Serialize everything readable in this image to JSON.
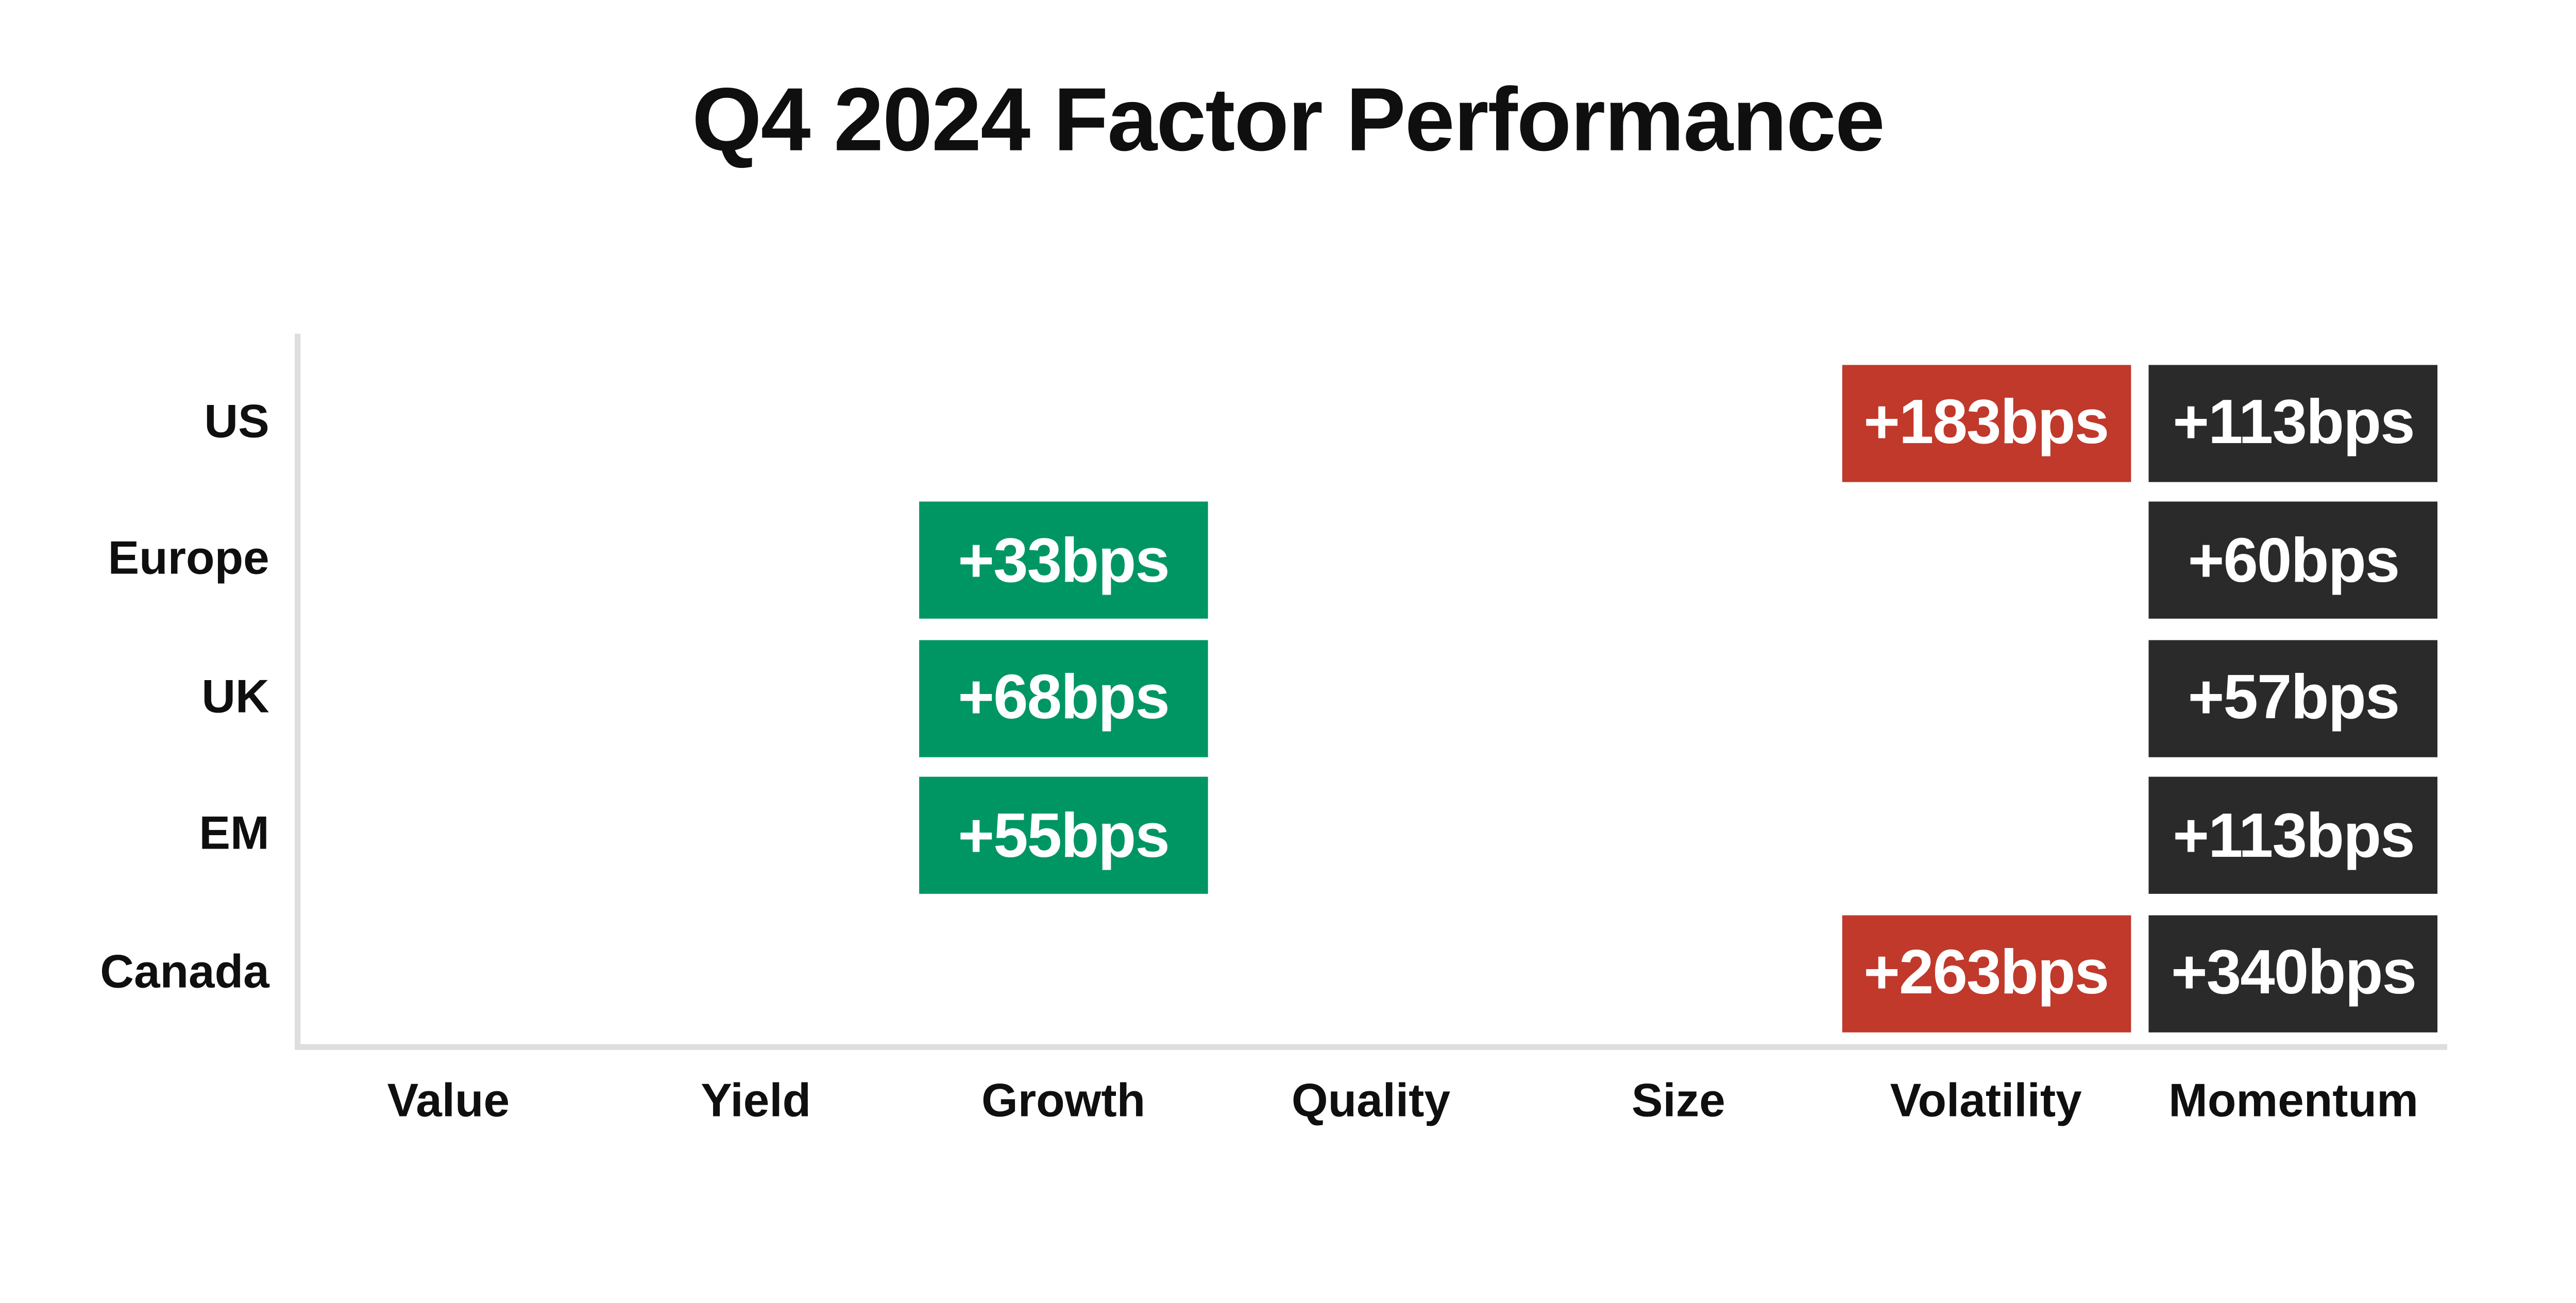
{
  "title": "Q4 2024 Factor Performance",
  "colors": {
    "background": "#FFFFFF",
    "title_text": "#0F0F0F",
    "axis_line": "#DEDEDE",
    "axis_label_text": "#0F0F0F",
    "cell_text": "#FFFFFF",
    "green": "#009664",
    "red": "#C0392B",
    "dark": "#2A2A2A"
  },
  "chart_data": {
    "type": "heatmap",
    "title": "Q4 2024 Factor Performance",
    "unit": "bps",
    "rows": [
      "US",
      "Europe",
      "UK",
      "EM",
      "Canada"
    ],
    "columns": [
      "Value",
      "Yield",
      "Growth",
      "Quality",
      "Size",
      "Volatility",
      "Momentum"
    ],
    "cells": [
      {
        "row": "US",
        "column": "Volatility",
        "label": "+183bps",
        "value": 183,
        "color": "red"
      },
      {
        "row": "US",
        "column": "Momentum",
        "label": "+113bps",
        "value": 113,
        "color": "dark"
      },
      {
        "row": "Europe",
        "column": "Growth",
        "label": "+33bps",
        "value": 33,
        "color": "green"
      },
      {
        "row": "Europe",
        "column": "Momentum",
        "label": "+60bps",
        "value": 60,
        "color": "dark"
      },
      {
        "row": "UK",
        "column": "Growth",
        "label": "+68bps",
        "value": 68,
        "color": "green"
      },
      {
        "row": "UK",
        "column": "Momentum",
        "label": "+57bps",
        "value": 57,
        "color": "dark"
      },
      {
        "row": "EM",
        "column": "Growth",
        "label": "+55bps",
        "value": 55,
        "color": "green"
      },
      {
        "row": "EM",
        "column": "Momentum",
        "label": "+113bps",
        "value": 113,
        "color": "dark"
      },
      {
        "row": "Canada",
        "column": "Volatility",
        "label": "+263bps",
        "value": 263,
        "color": "red"
      },
      {
        "row": "Canada",
        "column": "Momentum",
        "label": "+340bps",
        "value": 340,
        "color": "dark"
      }
    ],
    "legend": null,
    "gridlines": false
  }
}
